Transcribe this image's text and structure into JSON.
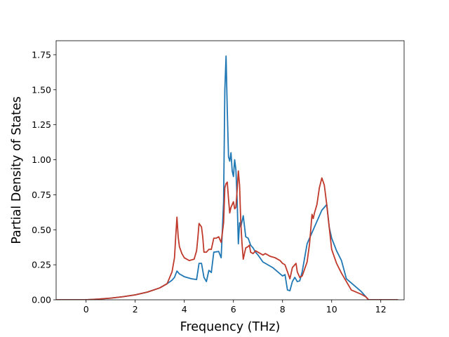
{
  "chart_data": {
    "type": "line",
    "title": "",
    "xlabel": "Frequency (THz)",
    "ylabel": "Partial Density of States",
    "xlim": [
      -1.22,
      12.95
    ],
    "ylim": [
      0,
      1.85
    ],
    "xticks": [
      0,
      2,
      4,
      6,
      8,
      10,
      12
    ],
    "xtick_labels": [
      "0",
      "2",
      "4",
      "6",
      "8",
      "10",
      "12"
    ],
    "yticks": [
      0,
      0.25,
      0.5,
      0.75,
      1.0,
      1.25,
      1.5,
      1.75
    ],
    "ytick_labels": [
      "0.00",
      "0.25",
      "0.50",
      "0.75",
      "1.00",
      "1.25",
      "1.50",
      "1.75"
    ],
    "grid": false,
    "legend": "none",
    "series": [
      {
        "color": "#1f77b4",
        "x": [
          -1.2,
          0.0,
          0.5,
          1.0,
          1.5,
          2.0,
          2.5,
          3.0,
          3.3,
          3.5,
          3.6,
          3.7,
          3.8,
          4.0,
          4.3,
          4.5,
          4.6,
          4.7,
          4.8,
          4.9,
          5.0,
          5.1,
          5.2,
          5.4,
          5.5,
          5.6,
          5.65,
          5.7,
          5.75,
          5.8,
          5.85,
          5.9,
          5.95,
          6.0,
          6.05,
          6.1,
          6.15,
          6.2,
          6.25,
          6.3,
          6.4,
          6.5,
          6.6,
          6.7,
          6.8,
          6.9,
          7.0,
          7.2,
          7.4,
          7.6,
          7.8,
          8.0,
          8.1,
          8.2,
          8.3,
          8.4,
          8.5,
          8.6,
          8.7,
          8.8,
          9.0,
          9.2,
          9.4,
          9.6,
          9.8,
          9.9,
          10.0,
          10.2,
          10.4,
          10.6,
          10.8,
          11.0,
          11.2,
          11.4,
          11.5,
          12.7
        ],
        "y": [
          0.0,
          0.0,
          0.005,
          0.012,
          0.022,
          0.035,
          0.055,
          0.085,
          0.115,
          0.14,
          0.16,
          0.205,
          0.185,
          0.165,
          0.15,
          0.145,
          0.26,
          0.26,
          0.16,
          0.13,
          0.21,
          0.195,
          0.34,
          0.345,
          0.3,
          0.7,
          1.5,
          1.74,
          1.35,
          1.02,
          0.99,
          1.05,
          0.92,
          0.88,
          1.0,
          0.93,
          0.72,
          0.4,
          0.55,
          0.52,
          0.6,
          0.45,
          0.44,
          0.39,
          0.37,
          0.34,
          0.32,
          0.27,
          0.25,
          0.23,
          0.2,
          0.17,
          0.18,
          0.07,
          0.065,
          0.13,
          0.16,
          0.13,
          0.135,
          0.2,
          0.4,
          0.48,
          0.56,
          0.64,
          0.68,
          0.52,
          0.44,
          0.35,
          0.28,
          0.15,
          0.12,
          0.09,
          0.06,
          0.02,
          0.0,
          0.0
        ]
      },
      {
        "color": "#c0392b",
        "x": [
          -1.2,
          0.0,
          0.5,
          1.0,
          1.5,
          2.0,
          2.5,
          3.0,
          3.3,
          3.5,
          3.6,
          3.65,
          3.7,
          3.75,
          3.8,
          3.9,
          4.0,
          4.2,
          4.4,
          4.5,
          4.55,
          4.6,
          4.7,
          4.75,
          4.8,
          4.9,
          5.0,
          5.1,
          5.2,
          5.3,
          5.4,
          5.5,
          5.6,
          5.65,
          5.7,
          5.75,
          5.8,
          5.85,
          5.9,
          5.95,
          6.0,
          6.05,
          6.1,
          6.15,
          6.2,
          6.25,
          6.3,
          6.35,
          6.4,
          6.5,
          6.6,
          6.65,
          6.7,
          6.8,
          6.9,
          7.0,
          7.1,
          7.2,
          7.3,
          7.5,
          7.7,
          7.8,
          7.9,
          8.0,
          8.1,
          8.2,
          8.3,
          8.4,
          8.5,
          8.55,
          8.6,
          8.7,
          8.8,
          9.0,
          9.1,
          9.2,
          9.25,
          9.3,
          9.4,
          9.5,
          9.6,
          9.7,
          9.8,
          9.9,
          10.0,
          10.2,
          10.4,
          10.6,
          10.8,
          11.0,
          11.2,
          11.4,
          11.5,
          12.7
        ],
        "y": [
          0.0,
          0.0,
          0.005,
          0.012,
          0.022,
          0.035,
          0.055,
          0.085,
          0.115,
          0.2,
          0.3,
          0.45,
          0.59,
          0.45,
          0.38,
          0.33,
          0.3,
          0.28,
          0.29,
          0.35,
          0.44,
          0.545,
          0.52,
          0.45,
          0.34,
          0.34,
          0.36,
          0.36,
          0.44,
          0.44,
          0.45,
          0.41,
          0.55,
          0.8,
          0.83,
          0.84,
          0.72,
          0.62,
          0.66,
          0.68,
          0.7,
          0.65,
          0.66,
          0.78,
          0.92,
          0.82,
          0.55,
          0.4,
          0.29,
          0.37,
          0.38,
          0.39,
          0.34,
          0.33,
          0.35,
          0.34,
          0.33,
          0.32,
          0.33,
          0.31,
          0.3,
          0.29,
          0.28,
          0.26,
          0.25,
          0.2,
          0.15,
          0.23,
          0.25,
          0.26,
          0.2,
          0.16,
          0.17,
          0.27,
          0.4,
          0.61,
          0.58,
          0.62,
          0.68,
          0.8,
          0.87,
          0.82,
          0.68,
          0.52,
          0.36,
          0.26,
          0.19,
          0.13,
          0.07,
          0.055,
          0.04,
          0.02,
          0.0,
          0.0
        ]
      }
    ]
  }
}
